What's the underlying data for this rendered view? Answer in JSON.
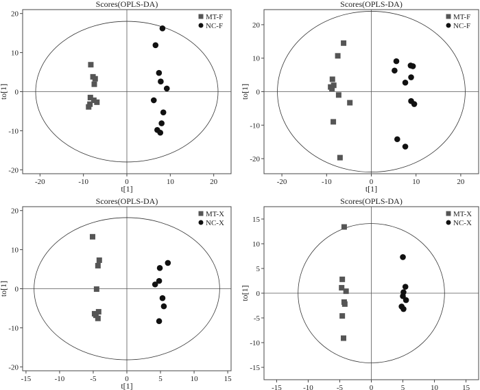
{
  "chart_data": [
    {
      "type": "scatter",
      "title": "Scores(OPLS-DA)",
      "xlabel": "t[1]",
      "ylabel": "to[1]",
      "xlim": [
        -24,
        24
      ],
      "ylim": [
        -21,
        21
      ],
      "xticks": [
        -20,
        -10,
        0,
        10,
        20
      ],
      "yticks": [
        -20,
        -10,
        0,
        10,
        20
      ],
      "ellipse": {
        "rx": 21,
        "ry": 18
      },
      "legend_position": "top-right",
      "series": [
        {
          "name": "MT-F",
          "marker": "square",
          "color": "#555555",
          "points": [
            [
              -8.3,
              6.9
            ],
            [
              -7.8,
              3.8
            ],
            [
              -7.3,
              3.3
            ],
            [
              -7.5,
              1.9
            ],
            [
              -8.4,
              -1.5
            ],
            [
              -7.6,
              -2.2
            ],
            [
              -6.9,
              -2.7
            ],
            [
              -8.5,
              -3.2
            ],
            [
              -8.8,
              -3.9
            ]
          ]
        },
        {
          "name": "NC-F",
          "marker": "circle",
          "color": "#111111",
          "points": [
            [
              8.2,
              16.2
            ],
            [
              6.6,
              11.9
            ],
            [
              7.4,
              4.8
            ],
            [
              7.8,
              2.6
            ],
            [
              9.2,
              0.8
            ],
            [
              6.2,
              -2.2
            ],
            [
              8.4,
              -5.3
            ],
            [
              8.0,
              -8.1
            ],
            [
              7.0,
              -9.8
            ],
            [
              7.7,
              -10.5
            ]
          ]
        }
      ]
    },
    {
      "type": "scatter",
      "title": "Scores(OPLS-DA)",
      "xlabel": "t[1]",
      "ylabel": "to[1]",
      "xlim": [
        -24,
        24
      ],
      "ylim": [
        -24.5,
        24.5
      ],
      "xticks": [
        -20,
        -10,
        0,
        10,
        20
      ],
      "yticks": [
        -20,
        -10,
        0,
        10,
        20
      ],
      "ellipse": {
        "rx": 21,
        "ry": 24
      },
      "legend_position": "top-right",
      "series": [
        {
          "name": "MT-F",
          "marker": "square",
          "color": "#555555",
          "points": [
            [
              -6.2,
              14.5
            ],
            [
              -7.5,
              10.7
            ],
            [
              -8.7,
              3.7
            ],
            [
              -8.4,
              1.9
            ],
            [
              -9.1,
              1.4
            ],
            [
              -8.8,
              0.9
            ],
            [
              -7.3,
              -1.0
            ],
            [
              -4.8,
              -3.3
            ],
            [
              -8.5,
              -9.0
            ],
            [
              -7.0,
              -19.7
            ]
          ]
        },
        {
          "name": "NC-F",
          "marker": "circle",
          "color": "#111111",
          "points": [
            [
              5.6,
              9.1
            ],
            [
              8.8,
              7.8
            ],
            [
              9.3,
              7.6
            ],
            [
              5.2,
              6.3
            ],
            [
              8.9,
              4.3
            ],
            [
              7.6,
              2.7
            ],
            [
              8.9,
              -2.8
            ],
            [
              9.6,
              -3.7
            ],
            [
              5.8,
              -14.2
            ],
            [
              7.6,
              -16.4
            ]
          ]
        }
      ]
    },
    {
      "type": "scatter",
      "title": "Scores(OPLS-DA)",
      "xlabel": "t[1]",
      "ylabel": "to[1]",
      "xlim": [
        -15.5,
        15.5
      ],
      "ylim": [
        -21,
        21
      ],
      "xticks": [
        -15,
        -10,
        -5,
        0,
        5,
        10,
        15
      ],
      "yticks": [
        -20,
        -10,
        0,
        10,
        20
      ],
      "ellipse": {
        "rx": 13.8,
        "ry": 18.2
      },
      "legend_position": "top-right",
      "series": [
        {
          "name": "MT-X",
          "marker": "square",
          "color": "#555555",
          "points": [
            [
              -5.1,
              13.3
            ],
            [
              -4.1,
              7.3
            ],
            [
              -4.3,
              5.9
            ],
            [
              -4.5,
              -0.1
            ],
            [
              -4.2,
              -5.9
            ],
            [
              -4.8,
              -6.4
            ],
            [
              -4.6,
              -6.8
            ],
            [
              -4.3,
              -7.6
            ]
          ]
        },
        {
          "name": "NC-X",
          "marker": "circle",
          "color": "#111111",
          "points": [
            [
              6.1,
              6.6
            ],
            [
              4.9,
              5.3
            ],
            [
              4.8,
              2.0
            ],
            [
              4.2,
              1.1
            ],
            [
              5.3,
              -2.4
            ],
            [
              5.5,
              -4.5
            ],
            [
              4.8,
              -8.3
            ]
          ]
        }
      ]
    },
    {
      "type": "scatter",
      "title": "Scores(OPLS-DA)",
      "xlabel": "t[1]",
      "ylabel": "to[1]",
      "xlim": [
        -17,
        17
      ],
      "ylim": [
        -17.5,
        17.5
      ],
      "xticks": [
        -15,
        -10,
        -5,
        0,
        5,
        10,
        15
      ],
      "yticks": [
        -15,
        -10,
        -5,
        0,
        5,
        10,
        15
      ],
      "ellipse": {
        "rx": 11.6,
        "ry": 14.1
      },
      "legend_position": "top-right",
      "series": [
        {
          "name": "MT-X",
          "marker": "square",
          "color": "#555555",
          "points": [
            [
              -4.3,
              13.4
            ],
            [
              -4.6,
              2.8
            ],
            [
              -4.7,
              1.1
            ],
            [
              -4.0,
              0.4
            ],
            [
              -4.3,
              -1.8
            ],
            [
              -4.2,
              -2.2
            ],
            [
              -4.6,
              -4.6
            ],
            [
              -4.4,
              -9.1
            ]
          ]
        },
        {
          "name": "NC-X",
          "marker": "circle",
          "color": "#111111",
          "points": [
            [
              5.0,
              7.3
            ],
            [
              5.4,
              1.3
            ],
            [
              5.1,
              0.2
            ],
            [
              5.0,
              -0.6
            ],
            [
              5.5,
              -1.4
            ],
            [
              4.8,
              -2.7
            ],
            [
              5.1,
              -3.2
            ]
          ]
        }
      ]
    }
  ]
}
